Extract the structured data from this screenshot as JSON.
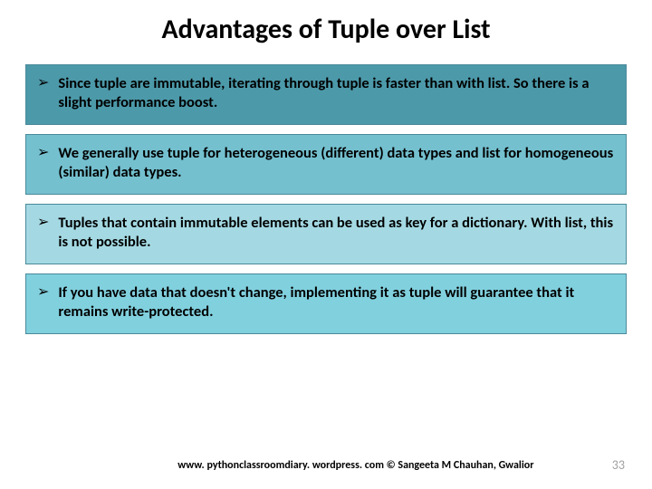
{
  "title": "Advantages of Tuple over List",
  "bullets": [
    {
      "text": "Since tuple are immutable, iterating through tuple is faster than with list. So there is a slight performance boost.",
      "bg_color": "#4c99a9"
    },
    {
      "text": "We generally use tuple for heterogeneous (different) data types and list for homogeneous (similar) data types.",
      "bg_color": "#74c0cf"
    },
    {
      "text": "Tuples that contain immutable elements can be used as key for a dictionary. With list, this is not possible.",
      "bg_color": "#a4d9e3"
    },
    {
      "text": "If you have data that doesn't change, implementing it as tuple will guarantee that it remains write-protected.",
      "bg_color": "#81d0de"
    }
  ],
  "footer": {
    "credit": "www. pythonclassroomdiary. wordpress. com ©  Sangeeta M Chauhan, Gwalior",
    "page_number": "33"
  },
  "styling": {
    "title_fontsize": 30,
    "bullet_fontsize": 16.5,
    "footer_fontsize": 12,
    "page_number_fontsize": 14,
    "page_number_color": "#a0a0a0",
    "text_color": "#000000",
    "background_color": "#ffffff",
    "border_color": "#4a8a9a",
    "bullet_symbol": "➢"
  }
}
